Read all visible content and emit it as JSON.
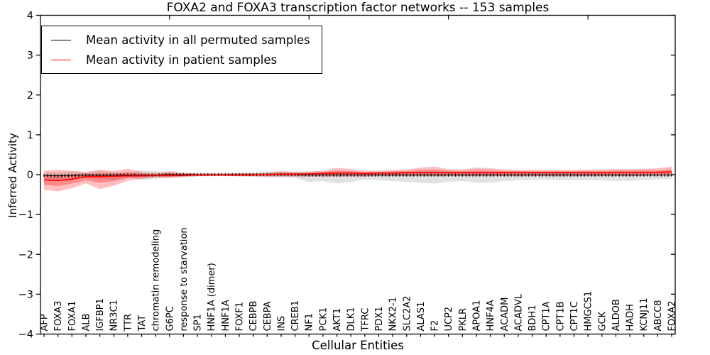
{
  "figure": {
    "title": "FOXA2 and FOXA3 transcription factor networks -- 153 samples",
    "xlabel": "Cellular Entities",
    "ylabel": "Inferred Activity"
  },
  "legend": {
    "position": "upper left",
    "items": [
      {
        "label": "Mean activity in all permuted samples",
        "color": "#000000"
      },
      {
        "label": "Mean activity in patient samples",
        "color": "#ff0000"
      }
    ]
  },
  "chart_data": {
    "type": "line",
    "title": "FOXA2 and FOXA3 transcription factor networks -- 153 samples",
    "xlabel": "Cellular Entities",
    "ylabel": "Inferred Activity",
    "ylim": [
      -4,
      4
    ],
    "yticks": [
      4,
      3,
      2,
      1,
      0,
      -1,
      -2,
      -3,
      -4
    ],
    "ytick_labels": [
      "4",
      "3",
      "2",
      "1",
      "0",
      "−1",
      "−2",
      "−3",
      "−4"
    ],
    "xtick_label_rotation": 90,
    "grid": false,
    "legend_position": "upper left",
    "categories": [
      "AFP",
      "FOXA3",
      "FOXA1",
      "ALB",
      "IGFBP1",
      "NR3C1",
      "TTR",
      "TAT",
      "chromatin remodeling",
      "G6PC",
      "response to starvation",
      "SP1",
      "HNF1A (dimer)",
      "HNF1A",
      "FOXF1",
      "CEBPB",
      "CEBPA",
      "INS",
      "CREB1",
      "NF1",
      "PCK1",
      "AKT1",
      "DLK1",
      "TFRC",
      "PDX1",
      "NKX2-1",
      "SLC2A2",
      "ALAS1",
      "F2",
      "UCP2",
      "PKLR",
      "APOA1",
      "HNF4A",
      "ACADM",
      "ACADVL",
      "BDH1",
      "CPT1A",
      "CPT1B",
      "CPT1C",
      "HMGCS1",
      "GCK",
      "ALDOB",
      "HADH",
      "KCNJ11",
      "ABCC8",
      "FOXA2"
    ],
    "series": [
      {
        "name": "Mean activity in all permuted samples",
        "color": "#000000",
        "band_color": "#aaaaaa",
        "band_opacity": 0.35,
        "values": [
          -0.02,
          -0.03,
          -0.02,
          -0.01,
          -0.02,
          -0.01,
          -0.01,
          -0.01,
          -0.01,
          0,
          0,
          0,
          0,
          0,
          0,
          0,
          0,
          0,
          0,
          -0.01,
          -0.01,
          -0.01,
          -0.01,
          -0.01,
          -0.01,
          -0.01,
          -0.01,
          -0.01,
          -0.01,
          -0.01,
          -0.01,
          -0.01,
          -0.01,
          -0.01,
          -0.01,
          -0.01,
          -0.01,
          -0.01,
          -0.01,
          -0.01,
          -0.01,
          -0.01,
          -0.01,
          -0.01,
          -0.01,
          -0.01
        ],
        "band_upper": [
          0.05,
          0.06,
          0.07,
          0.05,
          0.09,
          0.07,
          0.05,
          0.11,
          0.09,
          0.05,
          0.04,
          0.03,
          0.03,
          0.03,
          0.04,
          0.05,
          0.06,
          0.07,
          0.08,
          0.09,
          0.08,
          0.08,
          0.07,
          0.06,
          0.07,
          0.08,
          0.08,
          0.08,
          0.08,
          0.08,
          0.08,
          0.08,
          0.08,
          0.08,
          0.07,
          0.07,
          0.07,
          0.07,
          0.07,
          0.07,
          0.07,
          0.08,
          0.08,
          0.07,
          0.07,
          0.06
        ],
        "band_lower": [
          -0.1,
          -0.12,
          -0.1,
          -0.08,
          -0.11,
          -0.13,
          -0.07,
          -0.13,
          -0.11,
          -0.06,
          -0.05,
          -0.04,
          -0.03,
          -0.03,
          -0.04,
          -0.05,
          -0.06,
          -0.07,
          -0.08,
          -0.18,
          -0.16,
          -0.22,
          -0.18,
          -0.12,
          -0.14,
          -0.16,
          -0.18,
          -0.2,
          -0.22,
          -0.18,
          -0.16,
          -0.2,
          -0.2,
          -0.16,
          -0.14,
          -0.13,
          -0.13,
          -0.13,
          -0.13,
          -0.14,
          -0.14,
          -0.16,
          -0.15,
          -0.13,
          -0.12,
          -0.1
        ]
      },
      {
        "name": "Mean activity in patient samples",
        "color": "#ff0000",
        "band_color": "#ff0000",
        "band_opacity": 0.25,
        "values": [
          -0.13,
          -0.15,
          -0.11,
          -0.05,
          -0.05,
          -0.04,
          -0.03,
          -0.03,
          -0.02,
          -0.02,
          -0.02,
          -0.01,
          -0.01,
          -0.01,
          -0.01,
          -0.01,
          0,
          0.01,
          0.01,
          0.02,
          0.03,
          0.04,
          0.04,
          0.03,
          0.04,
          0.04,
          0.05,
          0.05,
          0.05,
          0.05,
          0.05,
          0.05,
          0.05,
          0.05,
          0.05,
          0.05,
          0.05,
          0.05,
          0.05,
          0.05,
          0.05,
          0.06,
          0.06,
          0.06,
          0.06,
          0.07
        ],
        "band_upper": [
          0.1,
          0.12,
          0.1,
          0.07,
          0.13,
          0.09,
          0.15,
          0.07,
          0.04,
          0.09,
          0.05,
          0.03,
          0.03,
          0.03,
          0.04,
          0.04,
          0.06,
          0.09,
          0.06,
          0.07,
          0.1,
          0.17,
          0.14,
          0.1,
          0.1,
          0.12,
          0.13,
          0.18,
          0.2,
          0.14,
          0.13,
          0.18,
          0.16,
          0.13,
          0.12,
          0.12,
          0.12,
          0.12,
          0.12,
          0.13,
          0.13,
          0.14,
          0.14,
          0.15,
          0.16,
          0.2
        ],
        "band_lower": [
          -0.38,
          -0.42,
          -0.34,
          -0.22,
          -0.36,
          -0.28,
          -0.15,
          -0.11,
          -0.07,
          -0.09,
          -0.06,
          -0.04,
          -0.03,
          -0.03,
          -0.04,
          -0.04,
          -0.05,
          -0.05,
          -0.05,
          -0.05,
          -0.05,
          -0.05,
          -0.05,
          -0.05,
          -0.04,
          -0.04,
          -0.04,
          -0.04,
          -0.04,
          -0.04,
          -0.04,
          -0.04,
          -0.04,
          -0.04,
          -0.04,
          -0.04,
          -0.04,
          -0.04,
          -0.04,
          -0.04,
          -0.04,
          -0.04,
          -0.04,
          -0.03,
          -0.03,
          -0.02
        ]
      }
    ]
  }
}
